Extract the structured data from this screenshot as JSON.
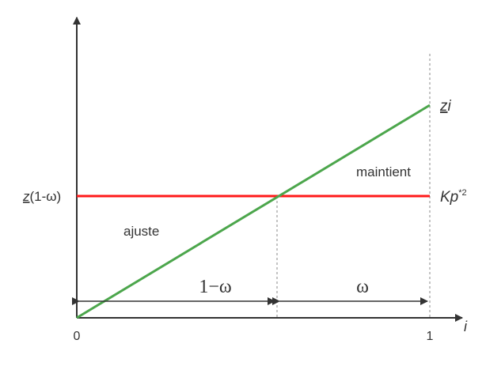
{
  "axes": {
    "x_label": "i",
    "x_ticks": [
      "0",
      "1"
    ],
    "y_tick": {
      "main": "z",
      "suffix": "(1-ω)"
    }
  },
  "lines": {
    "green": {
      "main": "z",
      "suffix": "i",
      "color": "#4ca64c"
    },
    "red": {
      "main": "Kp",
      "superscript": "*2",
      "color": "#ff1a1a"
    }
  },
  "regions": {
    "left": "ajuste",
    "right": "maintient"
  },
  "intervals": {
    "left": "1−ω",
    "right": "ω"
  },
  "colors": {
    "axis": "#333333",
    "guide": "#888888"
  }
}
